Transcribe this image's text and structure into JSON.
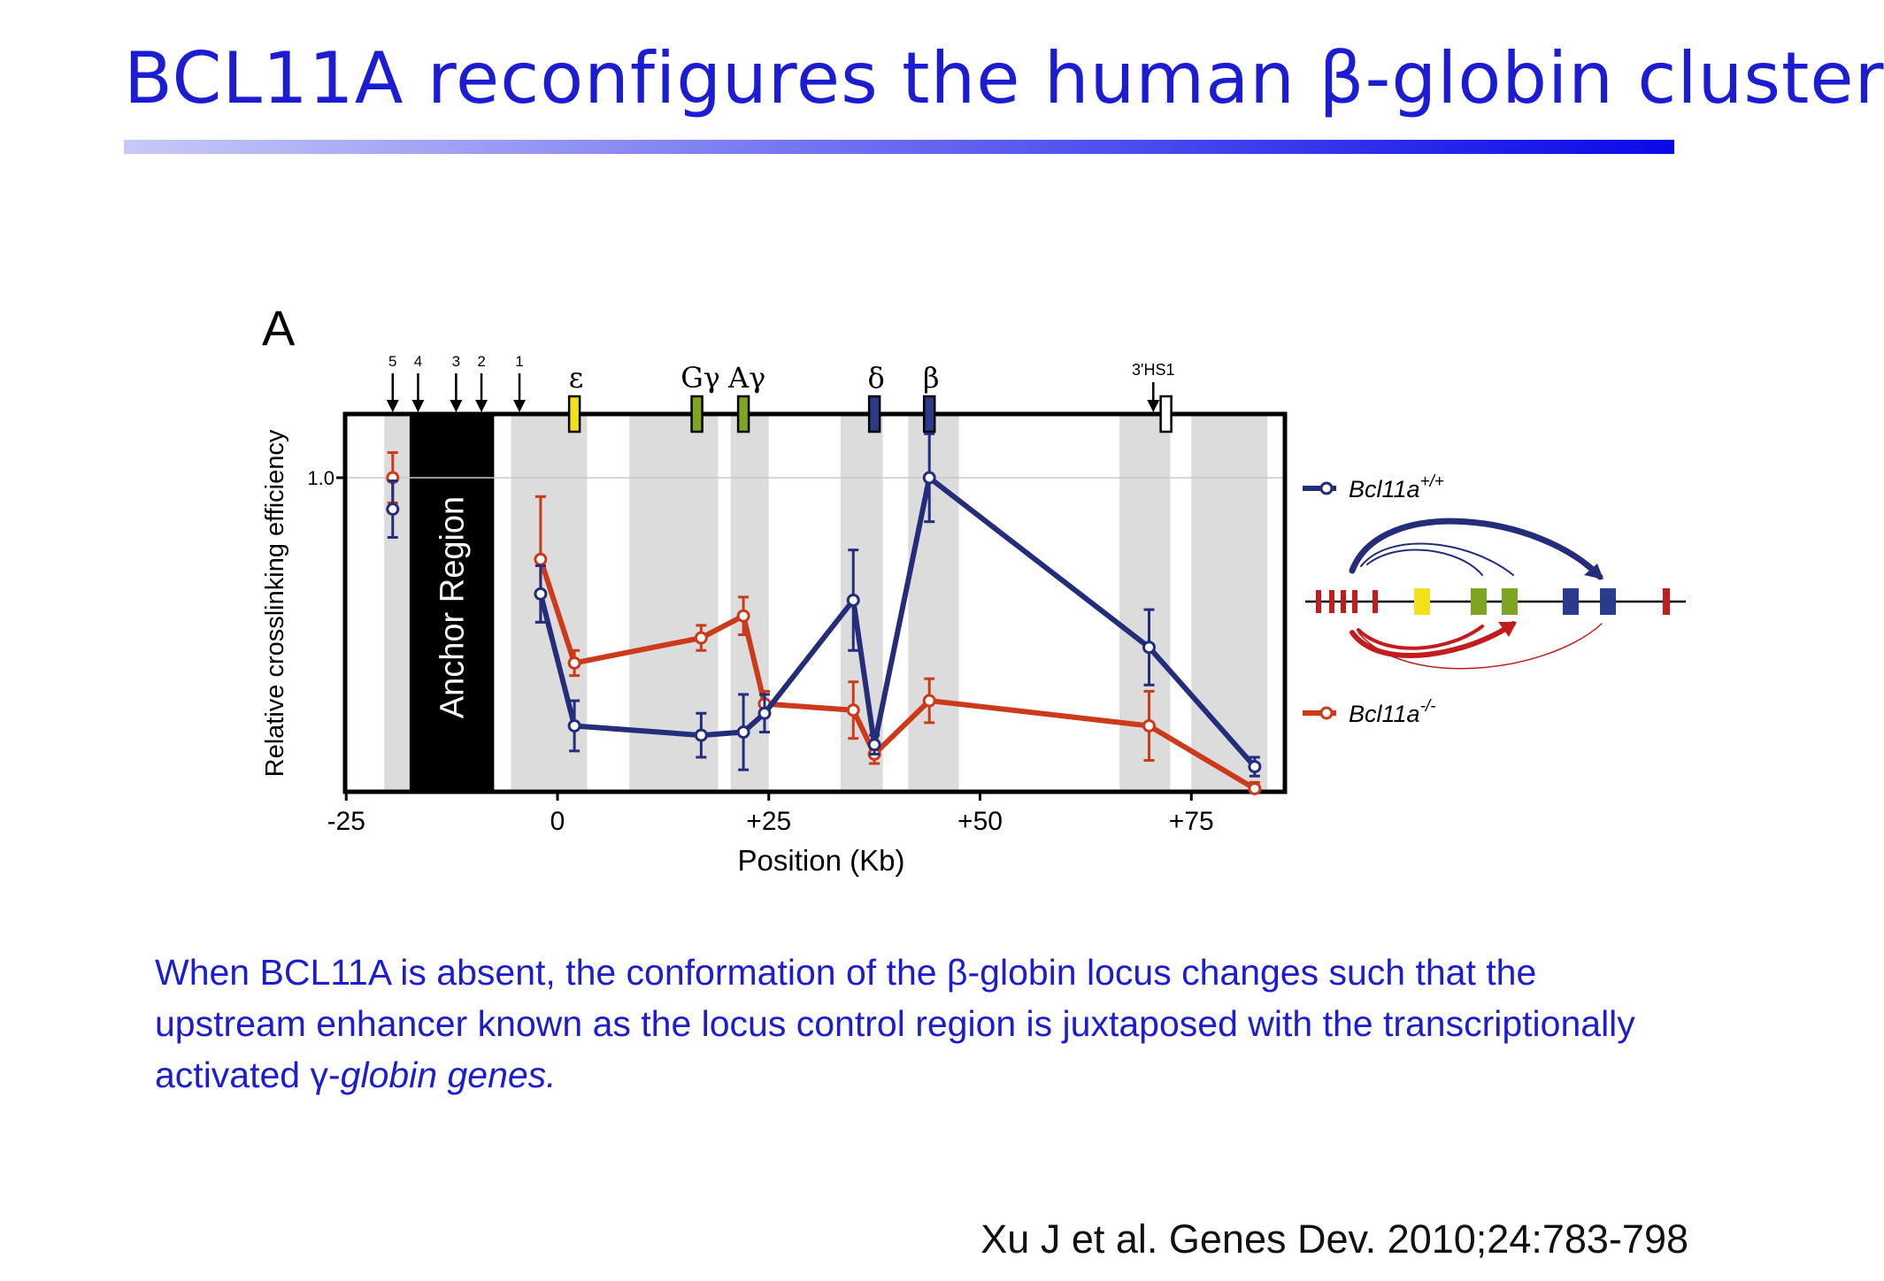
{
  "title": "BCL11A reconfigures the human β-globin cluster",
  "panel_label": "A",
  "caption": {
    "text_main": "When BCL11A is absent, the conformation of the β-globin locus changes such that the upstream enhancer known as the locus control region is juxtaposed with the transcriptionally activated γ-",
    "text_italic": "globin genes."
  },
  "citation": "Xu J et al. Genes Dev. 2010;24:783-798",
  "colors": {
    "wt": "#232d7a",
    "ko": "#cc3a1a",
    "title": "#1c1cd2",
    "shade": "#dcdcdc",
    "epsilon": "#f2e11a",
    "gamma": "#7ea520",
    "beta": "#2b3b8c",
    "ko_gene": "#c41c1c"
  },
  "chart_data": {
    "type": "line",
    "xlabel": "Position (Kb)",
    "ylabel": "Relative crosslinking efficiency",
    "xlim": [
      -25,
      85
    ],
    "ylim": [
      0,
      1.1
    ],
    "xticks": [
      {
        "value": -25,
        "label": "-25"
      },
      {
        "value": 0,
        "label": "0"
      },
      {
        "value": 25,
        "label": "+25"
      },
      {
        "value": 50,
        "label": "+50"
      },
      {
        "value": 75,
        "label": "+75"
      }
    ],
    "yticks": [
      {
        "value": 1.0,
        "label": "1.0"
      }
    ],
    "anchor_region": {
      "label": "Anchor Region",
      "x": [
        -17.5,
        -7.5
      ]
    },
    "shaded_regions": [
      [
        -20.5,
        -17.5
      ],
      [
        -5.5,
        3.5
      ],
      [
        8.5,
        19
      ],
      [
        20.5,
        25
      ],
      [
        33.5,
        38.5
      ],
      [
        41.5,
        47.5
      ],
      [
        66.5,
        72.5
      ],
      [
        75,
        84
      ]
    ],
    "hs_sites": [
      {
        "label": "5",
        "x": -19.5
      },
      {
        "label": "4",
        "x": -16.5
      },
      {
        "label": "3",
        "x": -12
      },
      {
        "label": "2",
        "x": -9
      },
      {
        "label": "1",
        "x": -4.5
      },
      {
        "label": "3'HS1",
        "x": 70.5
      }
    ],
    "genes": [
      {
        "label": "ε",
        "x": 2,
        "color": "#f2e11a"
      },
      {
        "label": "Gγ",
        "x": 16.5,
        "color": "#7ea520"
      },
      {
        "label": "Aγ",
        "x": 22,
        "color": "#7ea520"
      },
      {
        "label": "δ",
        "x": 37.5,
        "color": "#2b3b8c"
      },
      {
        "label": "β",
        "x": 44,
        "color": "#2b3b8c"
      },
      {
        "label": "",
        "x": 72,
        "color": "#ffffff"
      }
    ],
    "series": [
      {
        "name": "Bcl11a+/+",
        "legend_base": "Bcl11a",
        "legend_sup": "+/+",
        "color": "#232d7a",
        "points": [
          {
            "x": -19.5,
            "y": 0.9,
            "err": 0.09
          },
          {
            "x": -2,
            "y": 0.63,
            "err": 0.09
          },
          {
            "x": 2,
            "y": 0.21,
            "err": 0.08
          },
          {
            "x": 17,
            "y": 0.18,
            "err": 0.07
          },
          {
            "x": 22,
            "y": 0.19,
            "err": 0.12
          },
          {
            "x": 24.5,
            "y": 0.25,
            "err": 0.06
          },
          {
            "x": 35,
            "y": 0.61,
            "err": 0.16
          },
          {
            "x": 37.5,
            "y": 0.15,
            "err": 0.03
          },
          {
            "x": 44,
            "y": 1.0,
            "err": 0.14
          },
          {
            "x": 70,
            "y": 0.46,
            "err": 0.12
          },
          {
            "x": 82.5,
            "y": 0.08,
            "err": 0.03
          }
        ]
      },
      {
        "name": "Bcl11a-/-",
        "legend_base": "Bcl11a",
        "legend_sup": "-/-",
        "color": "#cc3a1a",
        "points": [
          {
            "x": -19.5,
            "y": 1.0,
            "err": 0.08
          },
          {
            "x": -2,
            "y": 0.74,
            "err": 0.2
          },
          {
            "x": 2,
            "y": 0.41,
            "err": 0.04
          },
          {
            "x": 17,
            "y": 0.49,
            "err": 0.04
          },
          {
            "x": 22,
            "y": 0.56,
            "err": 0.06
          },
          {
            "x": 24.5,
            "y": 0.28,
            "err": 0.04
          },
          {
            "x": 35,
            "y": 0.26,
            "err": 0.09
          },
          {
            "x": 37.5,
            "y": 0.12,
            "err": 0.03
          },
          {
            "x": 44,
            "y": 0.29,
            "err": 0.07
          },
          {
            "x": 70,
            "y": 0.21,
            "err": 0.11
          },
          {
            "x": 82.5,
            "y": 0.01,
            "err": 0.02
          }
        ]
      }
    ]
  }
}
